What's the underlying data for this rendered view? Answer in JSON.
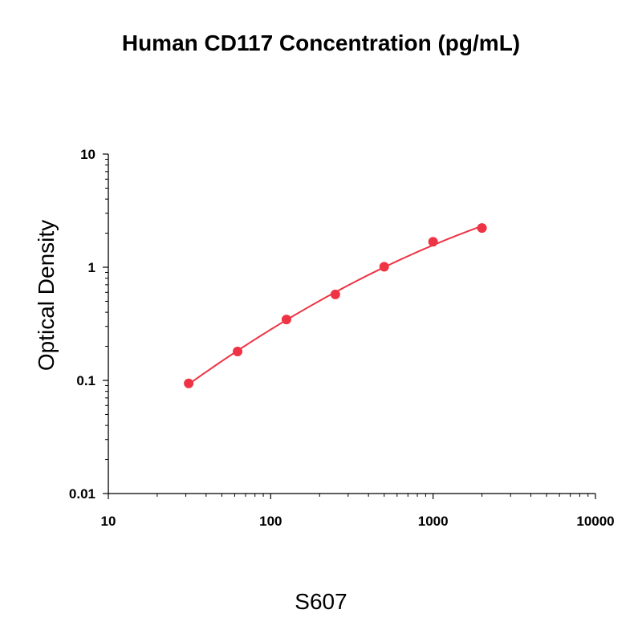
{
  "chart_data": {
    "type": "scatter",
    "title": "Human CD117 Concentration (pg/mL)",
    "xlabel": "",
    "ylabel": "Optical Density",
    "xscale": "log",
    "yscale": "log",
    "xlim": [
      10,
      10000
    ],
    "ylim": [
      0.01,
      10
    ],
    "x_ticks": [
      "10",
      "100",
      "1000",
      "10000"
    ],
    "y_ticks": [
      "10",
      "1",
      "0.1",
      "0.01"
    ],
    "grid": false,
    "series": [
      {
        "x": [
          31.25,
          62.5,
          125,
          250,
          500,
          1000,
          2000
        ],
        "y": [
          0.094,
          0.18,
          0.345,
          0.575,
          1.01,
          1.68,
          2.22
        ],
        "color": "#ee3344",
        "fit": "4PL curve"
      }
    ]
  },
  "caption": "S607"
}
